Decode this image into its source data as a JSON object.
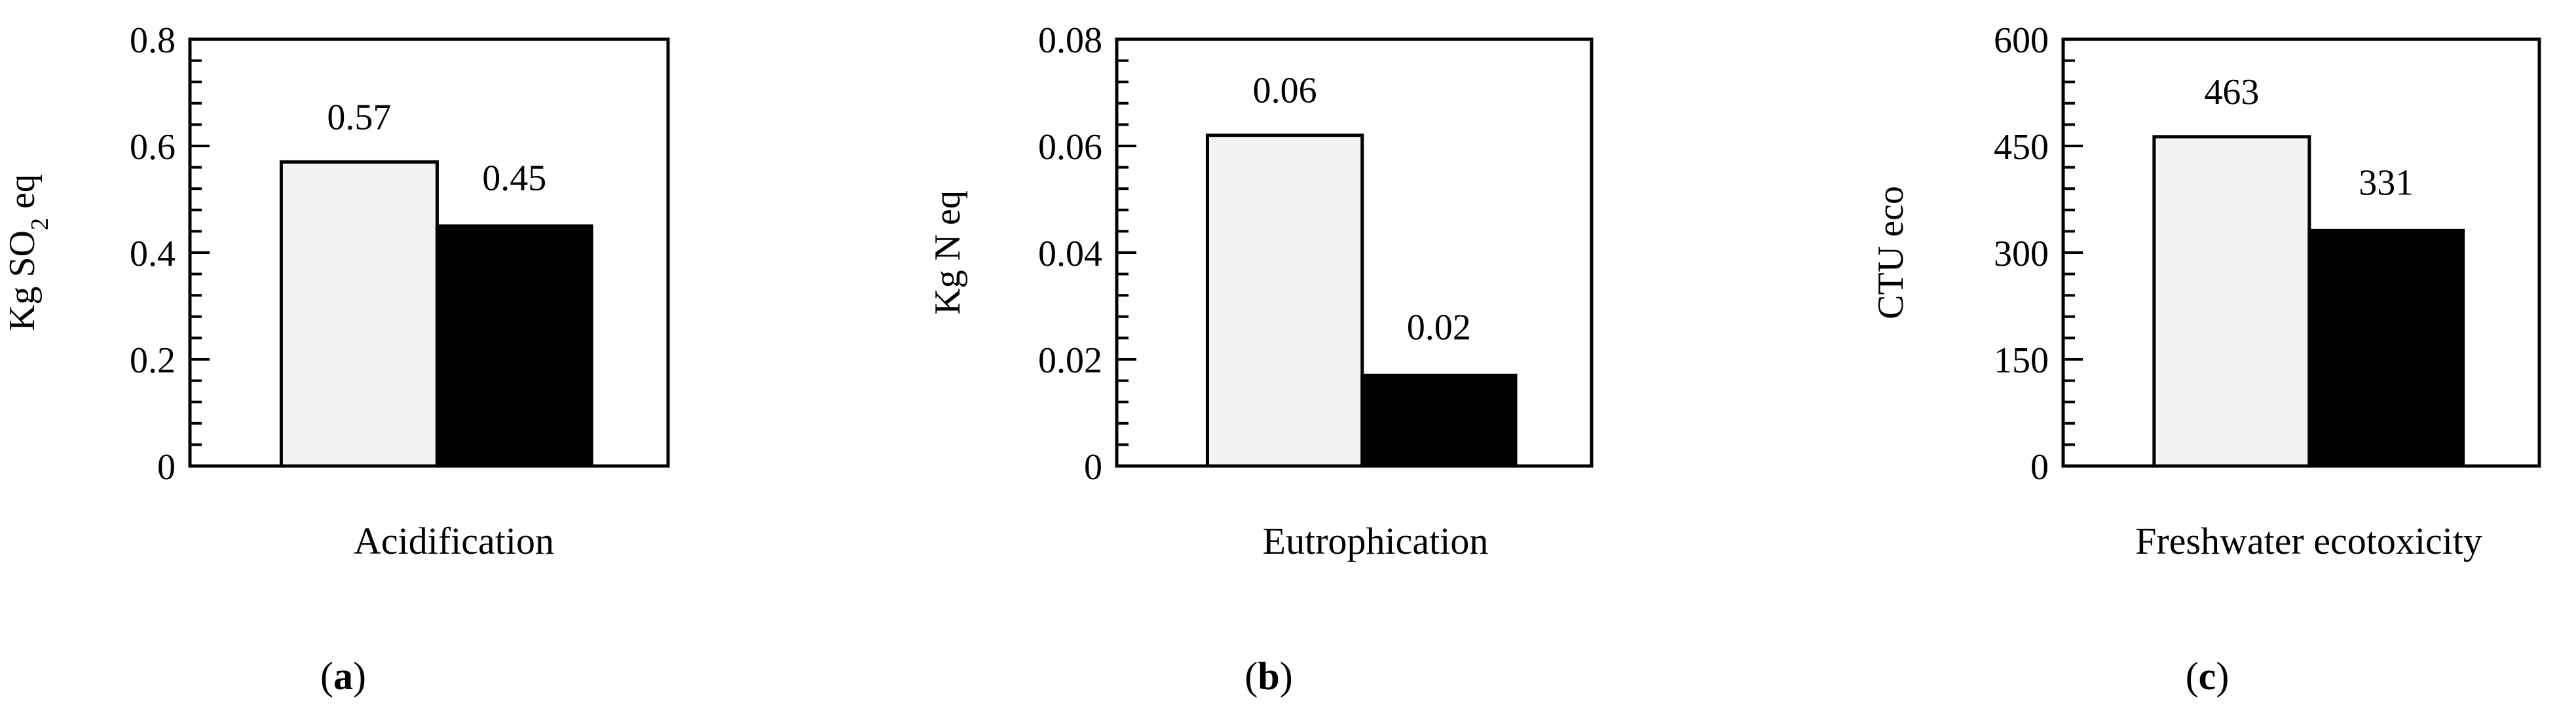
{
  "colors": {
    "series_1": "#f2f2f2",
    "series_2": "#000000",
    "frame": "#000000"
  },
  "chart_data": [
    {
      "type": "bar",
      "panel": "(a)",
      "panel_letter": "a",
      "categories": [
        "Acidification"
      ],
      "series": [
        {
          "values": [
            0.57
          ],
          "data_label": "0.57"
        },
        {
          "values": [
            0.45
          ],
          "data_label": "0.45"
        }
      ],
      "ylabel": "Kg SO",
      "ylabel_sub": "2",
      "ylabel_tail": " eq",
      "ylim": [
        0,
        0.8
      ],
      "yticks": [
        "0",
        "0.2",
        "0.4",
        "0.6",
        "0.8"
      ],
      "grid": false,
      "legend": "none"
    },
    {
      "type": "bar",
      "panel": "(b)",
      "panel_letter": "b",
      "categories": [
        "Eutrophication"
      ],
      "series": [
        {
          "values": [
            0.062
          ],
          "data_label": "0.06"
        },
        {
          "values": [
            0.017
          ],
          "data_label": "0.02"
        }
      ],
      "ylabel": "Kg N eq",
      "ylim": [
        0,
        0.08
      ],
      "yticks": [
        "0",
        "0.02",
        "0.04",
        "0.06",
        "0.08"
      ],
      "grid": false,
      "legend": "none"
    },
    {
      "type": "bar",
      "panel": "(c)",
      "panel_letter": "c",
      "categories": [
        "Freshwater ecotoxicity"
      ],
      "series": [
        {
          "values": [
            463
          ],
          "data_label": "463"
        },
        {
          "values": [
            331
          ],
          "data_label": "331"
        }
      ],
      "ylabel": "CTU eco",
      "ylim": [
        0,
        600
      ],
      "yticks": [
        "0",
        "150",
        "300",
        "450",
        "600"
      ],
      "grid": false,
      "legend": "none"
    }
  ]
}
